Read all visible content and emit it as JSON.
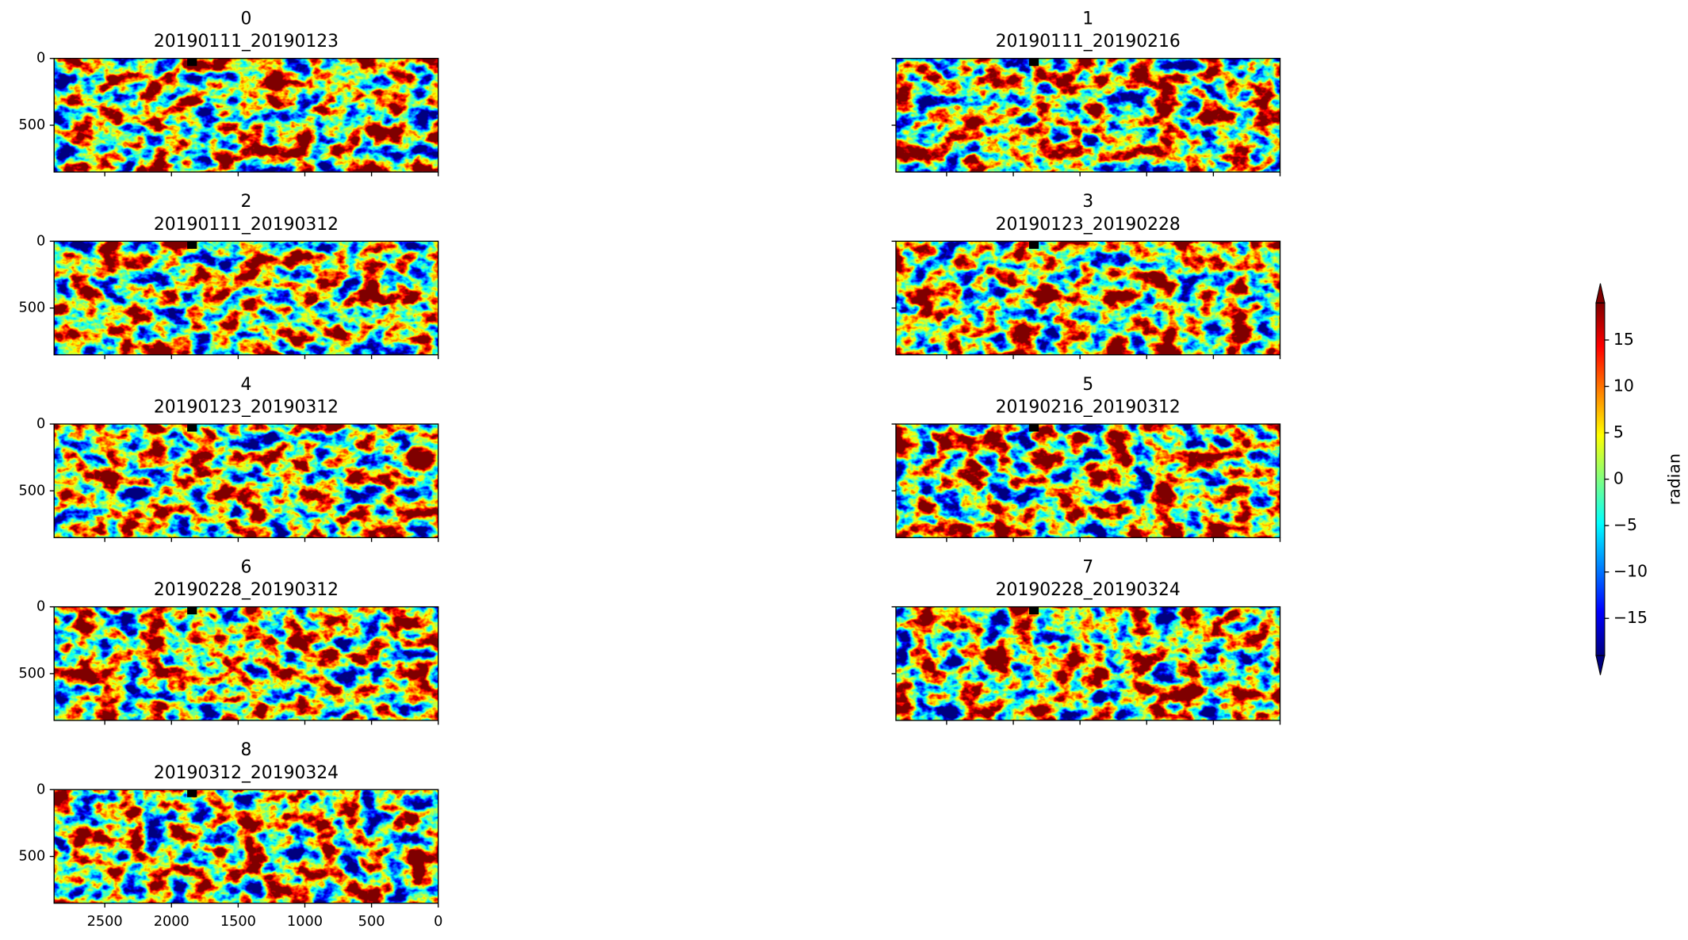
{
  "chart_data": {
    "type": "image_grid",
    "cmap": "jet",
    "xlim": [
      2880,
      0
    ],
    "xticks": [
      2500,
      2000,
      1500,
      1000,
      500,
      0
    ],
    "ylim": [
      850,
      0
    ],
    "yticks": [
      0,
      500
    ],
    "panels": [
      {
        "title": "0",
        "subtitle": "20190111_20190123"
      },
      {
        "title": "1",
        "subtitle": "20190111_20190216"
      },
      {
        "title": "2",
        "subtitle": "20190111_20190312"
      },
      {
        "title": "3",
        "subtitle": "20190123_20190228"
      },
      {
        "title": "4",
        "subtitle": "20190123_20190312"
      },
      {
        "title": "5",
        "subtitle": "20190216_20190312"
      },
      {
        "title": "6",
        "subtitle": "20190228_20190312"
      },
      {
        "title": "7",
        "subtitle": "20190228_20190324"
      },
      {
        "title": "8",
        "subtitle": "20190312_20190324"
      }
    ],
    "colorbar": {
      "label": "radian",
      "clim": [
        -19,
        19
      ],
      "extend": "both",
      "ticks": [
        {
          "value": -15,
          "label": "−15"
        },
        {
          "value": -10,
          "label": "−10"
        },
        {
          "value": -5,
          "label": "−5"
        },
        0,
        5,
        10,
        15
      ]
    }
  }
}
